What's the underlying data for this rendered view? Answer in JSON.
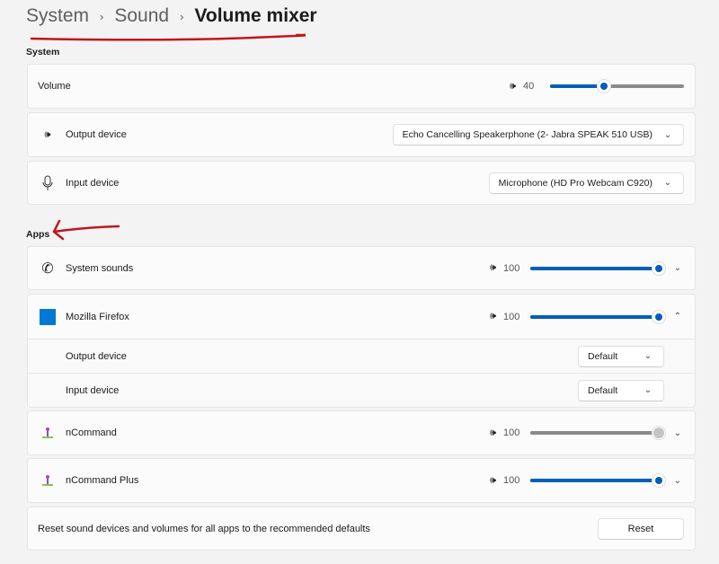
{
  "breadcrumb": [
    "System",
    "Sound",
    "Volume mixer"
  ],
  "system": {
    "heading": "System",
    "volume": {
      "label": "Volume",
      "value": 40,
      "icon": "speaker-icon"
    },
    "output": {
      "label": "Output device",
      "selected": "Echo Cancelling Speakerphone (2- Jabra SPEAK 510 USB)",
      "icon": "speaker-icon"
    },
    "input": {
      "label": "Input device",
      "selected": "Microphone (HD Pro Webcam C920)",
      "icon": "microphone-icon"
    }
  },
  "apps": {
    "heading": "Apps",
    "items": [
      {
        "name": "System sounds",
        "value": "100",
        "enabled": true,
        "expanded": false,
        "icon": "phone-icon"
      },
      {
        "name": "Mozilla Firefox",
        "value": "100",
        "enabled": true,
        "expanded": true,
        "icon": "firefox-app-icon",
        "output_label": "Output device",
        "output_selected": "Default",
        "input_label": "Input device",
        "input_selected": "Default"
      },
      {
        "name": "nCommand",
        "value": "100",
        "enabled": false,
        "expanded": false,
        "icon": "ncommand-app-icon"
      },
      {
        "name": "nCommand Plus",
        "value": "100",
        "enabled": true,
        "expanded": false,
        "icon": "ncommand-app-icon"
      }
    ]
  },
  "reset": {
    "text": "Reset sound devices and volumes for all apps to the recommended defaults",
    "button": "Reset"
  },
  "colors": {
    "accent": "#005fb8",
    "annotation": "#c0161b"
  }
}
